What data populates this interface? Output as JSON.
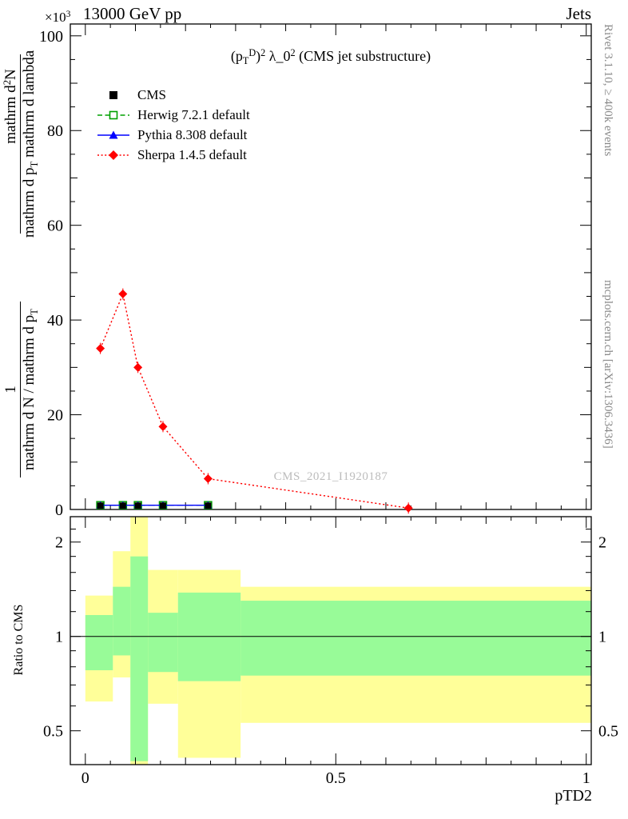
{
  "header": {
    "y_power_base": "×10",
    "y_power_exp": "3",
    "beam": "13000 GeV pp",
    "category": "Jets"
  },
  "side_labels": {
    "right_top": "Rivet 3.1.10, ≥ 400k events",
    "right_bottom": "mcplots.cern.ch [arXiv:1306.3436]",
    "watermark": "CMS_2021_I1920187"
  },
  "title_segments": [
    {
      "t": "(p"
    },
    {
      "t": "T",
      "s": "sub"
    },
    {
      "t": "D",
      "s": "sup"
    },
    {
      "t": ")"
    },
    {
      "t": "2",
      "s": "sup"
    },
    {
      "t": " λ_0"
    },
    {
      "t": "2",
      "s": "sup"
    },
    {
      "t": " (CMS jet substructure)"
    }
  ],
  "ylabel": {
    "upper_numerator": [
      {
        "t": "mathrm d"
      },
      {
        "t": "2",
        "s": "sup"
      },
      {
        "t": "N"
      }
    ],
    "upper_denominator": [
      {
        "t": "mathrm d p"
      },
      {
        "t": "T",
        "s": "sub"
      },
      {
        "t": " mathrm d lambda"
      }
    ],
    "lower_numerator": [
      {
        "t": "1"
      }
    ],
    "lower_denominator": [
      {
        "t": "mathrm d N / mathrm d p"
      },
      {
        "t": "T",
        "s": "sub"
      }
    ]
  },
  "chart_data": [
    {
      "type": "line",
      "title": "(p_T^D)^2 λ_0^2 (CMS jet substructure)",
      "xlabel": "pTD2",
      "ylabel": "1/(dN/dp_T) d2N/(dp_T dlambda)",
      "y_scale_label": "×10^3",
      "xlim": [
        -0.03,
        1.01
      ],
      "ylim": [
        0,
        102.5
      ],
      "grid": false,
      "legend_position": "top-left",
      "x_ticks": {
        "major": [
          0,
          0.5,
          1
        ],
        "labels": [
          "0",
          "0.5",
          "1"
        ]
      },
      "y_ticks": {
        "major": [
          0,
          20,
          40,
          60,
          80,
          100
        ],
        "labels": [
          "0",
          "20",
          "40",
          "60",
          "80",
          "100"
        ]
      },
      "series": [
        {
          "name": "CMS",
          "color": "#000000",
          "line": "none",
          "marker": "square-filled",
          "x": [
            0.03,
            0.075,
            0.105,
            0.155,
            0.245
          ],
          "y": [
            0.8,
            0.8,
            0.8,
            0.8,
            0.8
          ]
        },
        {
          "name": "Herwig 7.2.1 default",
          "color": "#00a000",
          "line": "dashed",
          "marker": "square-open",
          "x": [
            0.03,
            0.075,
            0.105,
            0.155,
            0.245
          ],
          "y": [
            0.9,
            0.9,
            0.9,
            0.9,
            0.9
          ]
        },
        {
          "name": "Pythia 8.308 default",
          "color": "#0000ff",
          "line": "solid",
          "marker": "triangle-filled",
          "x": [
            0.03,
            0.075,
            0.105,
            0.155,
            0.245
          ],
          "y": [
            0.9,
            0.9,
            0.9,
            0.9,
            0.9
          ]
        },
        {
          "name": "Sherpa 1.4.5 default",
          "color": "#ff0000",
          "line": "dotted",
          "marker": "diamond-filled",
          "x": [
            0.03,
            0.075,
            0.105,
            0.155,
            0.245,
            0.645
          ],
          "y": [
            34,
            45.5,
            30,
            17.5,
            6.5,
            0.3
          ]
        }
      ]
    },
    {
      "type": "ratio-bands",
      "ylabel": "Ratio to CMS",
      "xlim": [
        -0.03,
        1.01
      ],
      "ylim": [
        0.39,
        2.41
      ],
      "yscale": "log",
      "reference_line": 1.0,
      "y_ticks": {
        "major": [
          0.5,
          1,
          2
        ],
        "labels": [
          "0.5",
          "1",
          "2"
        ],
        "minor": [
          0.6,
          0.7,
          0.8,
          0.9,
          1.2,
          1.4,
          1.6,
          1.8,
          2.2
        ]
      },
      "band_colors": {
        "yellow": "#ffff99",
        "green": "#98fb98"
      },
      "bands": [
        {
          "x": [
            0.0,
            0.055
          ],
          "yellow": [
            0.62,
            1.35
          ],
          "green": [
            0.78,
            1.17
          ]
        },
        {
          "x": [
            0.055,
            0.09
          ],
          "yellow": [
            0.74,
            1.87
          ],
          "green": [
            0.87,
            1.44
          ]
        },
        {
          "x": [
            0.09,
            0.125
          ],
          "yellow": [
            0.35,
            2.45
          ],
          "green": [
            0.4,
            1.8
          ]
        },
        {
          "x": [
            0.125,
            0.185
          ],
          "yellow": [
            0.61,
            1.63
          ],
          "green": [
            0.77,
            1.19
          ]
        },
        {
          "x": [
            0.185,
            0.31
          ],
          "yellow": [
            0.41,
            1.63
          ],
          "green": [
            0.72,
            1.38
          ]
        },
        {
          "x": [
            0.31,
            1.01
          ],
          "yellow": [
            0.53,
            1.44
          ],
          "green": [
            0.75,
            1.3
          ]
        }
      ]
    }
  ]
}
